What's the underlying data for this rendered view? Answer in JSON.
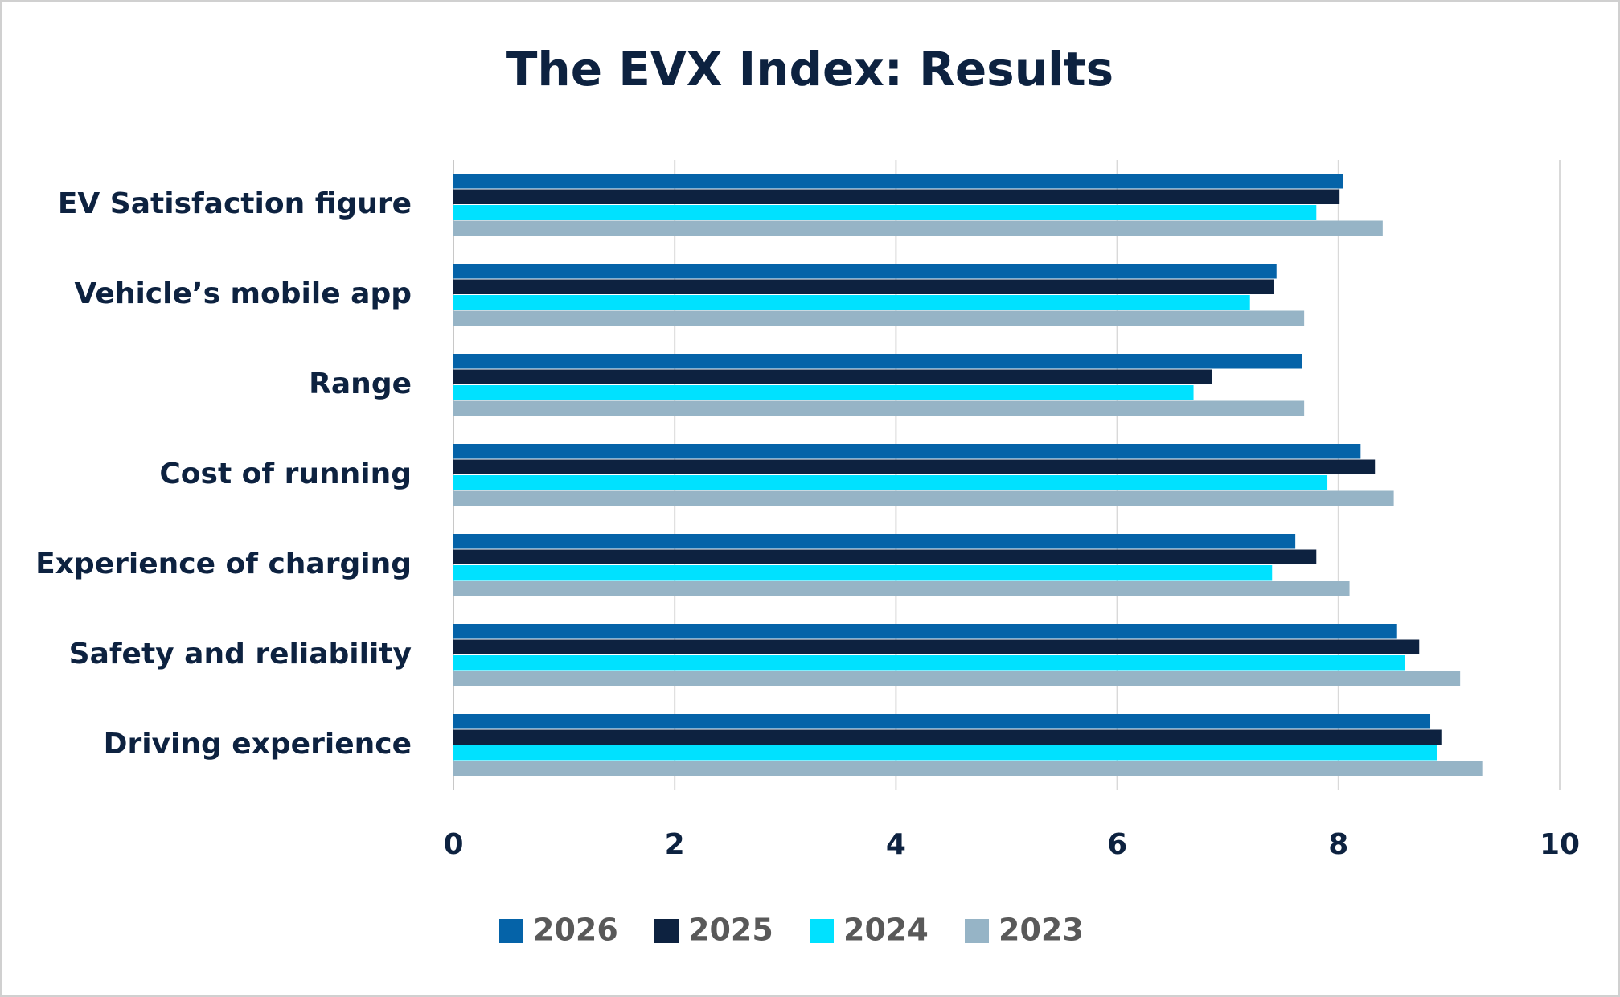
{
  "chart_data": {
    "type": "hbar",
    "title": "The EVX Index: Results",
    "categories": [
      "EV Satisfaction figure",
      "Vehicle’s mobile app",
      "Range",
      "Cost of running",
      "Experience of charging",
      "Safety and reliability",
      "Driving experience"
    ],
    "series": [
      {
        "name": "2026",
        "color": "#0563a8",
        "values": [
          8.04,
          7.44,
          7.67,
          8.2,
          7.61,
          8.53,
          8.83
        ]
      },
      {
        "name": "2025",
        "color": "#0d2240",
        "values": [
          8.01,
          7.42,
          6.86,
          8.33,
          7.8,
          8.73,
          8.93
        ]
      },
      {
        "name": "2024",
        "color": "#00e1ff",
        "values": [
          7.8,
          7.2,
          6.69,
          7.9,
          7.4,
          8.6,
          8.89
        ]
      },
      {
        "name": "2023",
        "color": "#96b4c6",
        "values": [
          8.4,
          7.69,
          7.69,
          8.5,
          8.1,
          9.1,
          9.3
        ]
      }
    ],
    "xlim": [
      0,
      10
    ],
    "xticks": [
      0,
      2,
      4,
      6,
      8,
      10
    ],
    "grid": true,
    "legend": "bottom"
  }
}
